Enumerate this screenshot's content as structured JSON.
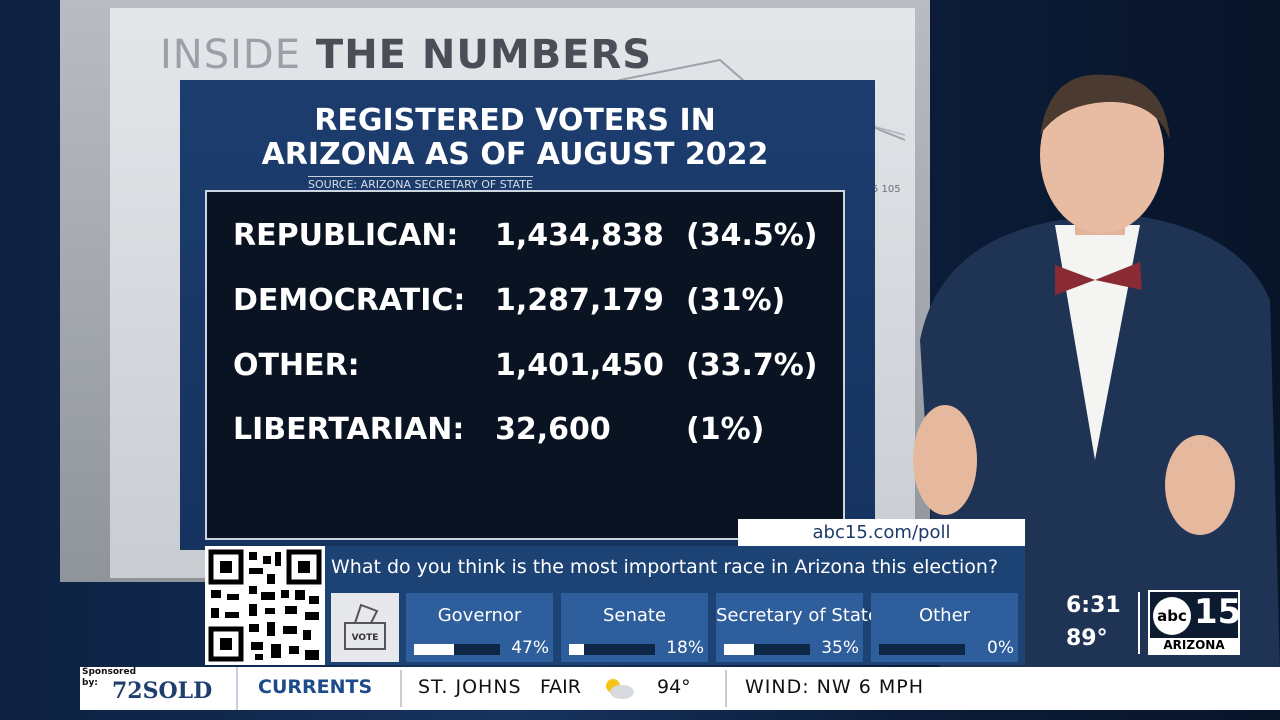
{
  "board": {
    "header_light": "INSIDE",
    "header_dark": "THE NUMBERS",
    "bg_label": "5 105",
    "title": [
      "REGISTERED VOTERS IN",
      "ARIZONA AS OF AUGUST 2022"
    ],
    "source": "SOURCE: ARIZONA SECRETARY OF STATE",
    "rows": [
      [
        "REPUBLICAN:",
        "1,434,838",
        "(34.5%)"
      ],
      [
        "DEMOCRATIC:",
        "1,287,179",
        "(31%)"
      ],
      [
        "OTHER:",
        "1,401,450",
        "(33.7%)"
      ],
      [
        "LIBERTARIAN:",
        "32,600",
        "(1%)"
      ]
    ]
  },
  "poll": {
    "url": "abc15.com/poll",
    "question": "What do you think is the most important race in Arizona this election?",
    "icon_label": "VOTE",
    "options": [
      {
        "name": "Governor",
        "share": {
          "value": 47,
          "label": "47%"
        }
      },
      {
        "name": "Senate",
        "share": {
          "value": 18,
          "label": "18%"
        }
      },
      {
        "name": "Secretary of State",
        "share": {
          "value": 35,
          "label": "35%"
        }
      },
      {
        "name": "Other",
        "share": {
          "value": 0,
          "label": "0%"
        }
      }
    ]
  },
  "clock": {
    "time": "6:31",
    "temp": "89°"
  },
  "logo": {
    "mark": "abc",
    "number": "15",
    "region": "ARIZONA"
  },
  "ticker": {
    "sponsor_label": "Sponsored by:",
    "sponsor": "72SOLD",
    "section": "CURRENTS",
    "city": "ST. JOHNS",
    "condition": "FAIR",
    "temp": "94°",
    "wind": "WIND: NW 6 MPH"
  }
}
